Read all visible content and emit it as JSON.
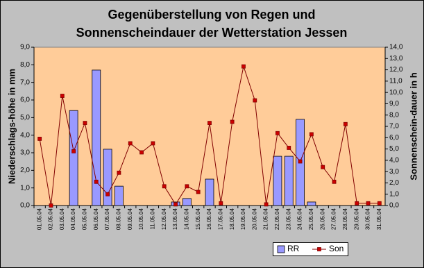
{
  "chart_data": {
    "type": "bar-line",
    "title": [
      "Gegenüberstellung von Regen und",
      "Sonnenscheindauer der Wetterstation Jessen"
    ],
    "y_label": "Niederschlags-höhe in mm",
    "y2_label": "Sonnenschein-dauer in h",
    "categories": [
      "01.05.04",
      "02.05.04",
      "03.05.04",
      "04.05.04",
      "05.05.04",
      "06.05.04",
      "07.05.04",
      "08.05.04",
      "09.05.04",
      "10.05.04",
      "11.05.04",
      "12.05.04",
      "13.05.04",
      "14.05.04",
      "15.05.04",
      "16.05.04",
      "17.05.04",
      "18.05.04",
      "19.05.04",
      "20.05.04",
      "21.05.04",
      "22.05.04",
      "23.05.04",
      "24.05.04",
      "25.05.04",
      "26.05.04",
      "27.05.04",
      "28.05.04",
      "29.05.04",
      "30.05.04",
      "31.05.04"
    ],
    "series": [
      {
        "name": "RR",
        "type": "bar",
        "color": "#9999ff",
        "axis": "y",
        "values": [
          0,
          0,
          0,
          5.4,
          0,
          7.7,
          3.2,
          1.1,
          0,
          0,
          0,
          0,
          0.2,
          0.4,
          0,
          1.5,
          0,
          0,
          0,
          0,
          0,
          2.8,
          2.8,
          4.9,
          0.2,
          0,
          0,
          0,
          0,
          0,
          0
        ]
      },
      {
        "name": "Son",
        "type": "line",
        "color": "#800000",
        "marker_color": "#cc0000",
        "axis": "y2",
        "values": [
          5.9,
          0.0,
          9.7,
          4.8,
          7.3,
          2.1,
          1.0,
          2.9,
          5.5,
          4.7,
          5.5,
          1.7,
          0.1,
          1.7,
          1.2,
          7.3,
          0.2,
          7.4,
          12.3,
          9.3,
          0.1,
          6.4,
          5.1,
          3.9,
          6.3,
          3.4,
          2.1,
          7.2,
          0.2,
          0.2,
          0.2
        ]
      }
    ],
    "ylim": [
      0,
      9
    ],
    "yticks": [
      {
        "value": 0,
        "label": "0,0"
      },
      {
        "value": 1,
        "label": "1,0"
      },
      {
        "value": 2,
        "label": "2,0"
      },
      {
        "value": 3,
        "label": "3,0"
      },
      {
        "value": 4,
        "label": "4,0"
      },
      {
        "value": 5,
        "label": "5,0"
      },
      {
        "value": 6,
        "label": "6,0"
      },
      {
        "value": 7,
        "label": "7,0"
      },
      {
        "value": 8,
        "label": "8,0"
      },
      {
        "value": 9,
        "label": "9,0"
      }
    ],
    "y2lim": [
      0,
      14
    ],
    "y2ticks": [
      {
        "value": 0,
        "label": "0,0"
      },
      {
        "value": 1,
        "label": "1,0"
      },
      {
        "value": 2,
        "label": "2,0"
      },
      {
        "value": 3,
        "label": "3,0"
      },
      {
        "value": 4,
        "label": "4,0"
      },
      {
        "value": 5,
        "label": "5,0"
      },
      {
        "value": 6,
        "label": "6,0"
      },
      {
        "value": 7,
        "label": "7,0"
      },
      {
        "value": 8,
        "label": "8,0"
      },
      {
        "value": 9,
        "label": "9,0"
      },
      {
        "value": 10,
        "label": "10,0"
      },
      {
        "value": 11,
        "label": "11,0"
      },
      {
        "value": 12,
        "label": "12,0"
      },
      {
        "value": 13,
        "label": "13,0"
      },
      {
        "value": 14,
        "label": "14,0"
      }
    ],
    "plot_background": "#ffcc99"
  }
}
